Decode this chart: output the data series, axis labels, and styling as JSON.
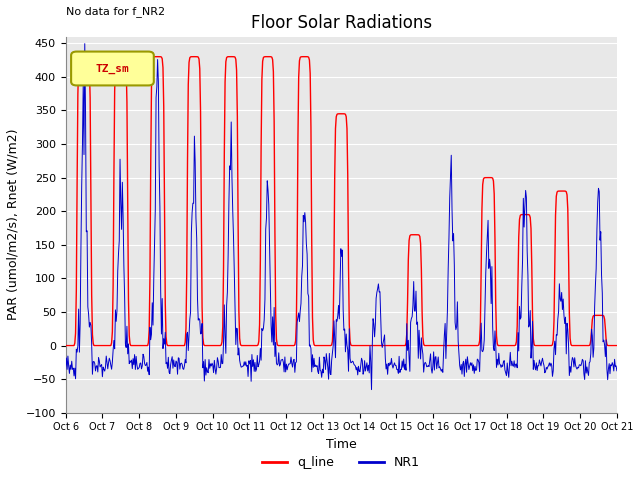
{
  "title": "Floor Solar Radiations",
  "annotation_topleft": "No data for f_NR2",
  "legend_box_label": "TZ_sm",
  "xlabel": "Time",
  "ylabel": "PAR (umol/m2/s), Rnet (W/m2)",
  "ylim": [
    -100,
    460
  ],
  "yticks": [
    -100,
    -50,
    0,
    50,
    100,
    150,
    200,
    250,
    300,
    350,
    400,
    450
  ],
  "xticklabels": [
    "Oct 6",
    "Oct 7",
    "Oct 8",
    "Oct 9",
    "Oct 10",
    "Oct 11",
    "Oct 12",
    "Oct 13",
    "Oct 14",
    "Oct 15",
    "Oct 16",
    "Oct 17",
    "Oct 18",
    "Oct 19",
    "Oct 20",
    "Oct 21"
  ],
  "line_red_color": "#FF0000",
  "line_blue_color": "#0000CC",
  "line_red_label": "q_line",
  "line_blue_label": "NR1",
  "bg_color": "#E8E8E8",
  "legend_box_facecolor": "#FFFF99",
  "legend_box_edgecolor": "#999900",
  "title_fontsize": 12,
  "label_fontsize": 9,
  "tick_fontsize": 8,
  "red_peaks": [
    430,
    430,
    430,
    430,
    430,
    430,
    430,
    345,
    0,
    165,
    0,
    250,
    195,
    230,
    45
  ],
  "blue_peaks": [
    370,
    255,
    350,
    265,
    295,
    210,
    205,
    105,
    85,
    80,
    280,
    160,
    220,
    70,
    215
  ],
  "n_days": 15,
  "n_pts_per_day": 48
}
